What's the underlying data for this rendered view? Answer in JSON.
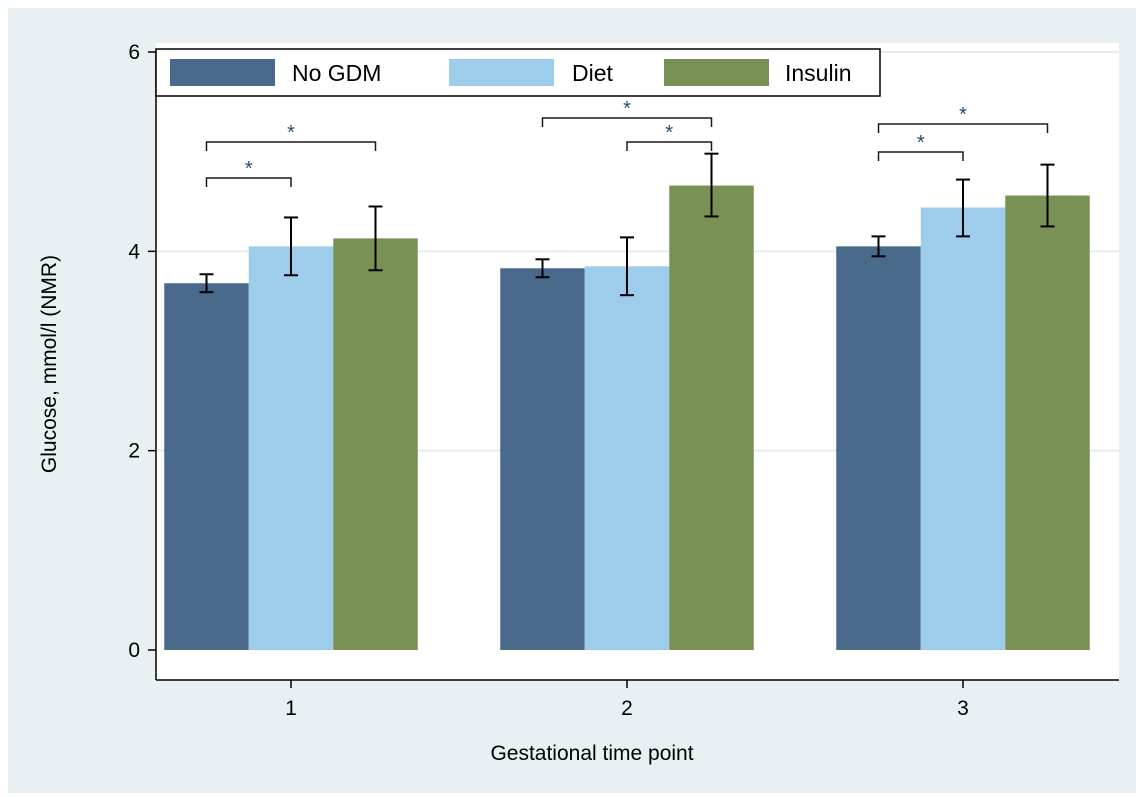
{
  "chart_data": {
    "type": "bar",
    "xlabel": "Gestational time point",
    "ylabel": "Glucose, mmol/l (NMR)",
    "categories": [
      "1",
      "2",
      "3"
    ],
    "ylim": [
      0,
      6
    ],
    "yticks": [
      0,
      2,
      4,
      6
    ],
    "grid": true,
    "legend_position": "top-left",
    "series": [
      {
        "name": "No GDM",
        "color": "#4a6a8c",
        "values": [
          3.68,
          3.83,
          4.05
        ],
        "error_low": [
          3.59,
          3.74,
          3.95
        ],
        "error_high": [
          3.77,
          3.92,
          4.15
        ]
      },
      {
        "name": "Diet",
        "color": "#9ecdeb",
        "values": [
          4.05,
          3.85,
          4.44
        ],
        "error_low": [
          3.76,
          3.56,
          4.15
        ],
        "error_high": [
          4.34,
          4.14,
          4.72
        ]
      },
      {
        "name": "Insulin",
        "color": "#7a9156",
        "values": [
          4.13,
          4.66,
          4.56
        ],
        "error_low": [
          3.81,
          4.35,
          4.25
        ],
        "error_high": [
          4.45,
          4.98,
          4.87
        ]
      }
    ],
    "significance": [
      {
        "category": 0,
        "from_series": 0,
        "to_series": 1,
        "label": "*"
      },
      {
        "category": 0,
        "from_series": 0,
        "to_series": 2,
        "label": "*"
      },
      {
        "category": 1,
        "from_series": 1,
        "to_series": 2,
        "label": "*"
      },
      {
        "category": 1,
        "from_series": 0,
        "to_series": 2,
        "label": "*"
      },
      {
        "category": 2,
        "from_series": 0,
        "to_series": 1,
        "label": "*"
      },
      {
        "category": 2,
        "from_series": 0,
        "to_series": 2,
        "label": "*"
      }
    ]
  }
}
